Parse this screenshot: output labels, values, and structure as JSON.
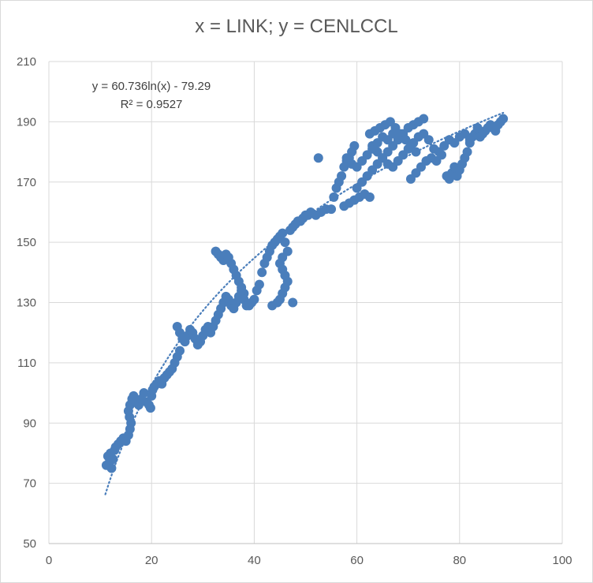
{
  "chart_data": {
    "type": "scatter",
    "title": "x = LINK; y = CENLCCL",
    "xlabel": "",
    "ylabel": "",
    "xlim": [
      0,
      100
    ],
    "ylim": [
      50,
      210
    ],
    "x_ticks": [
      "0",
      "20",
      "40",
      "60",
      "80",
      "100"
    ],
    "y_ticks": [
      "50",
      "70",
      "90",
      "110",
      "130",
      "150",
      "170",
      "190",
      "210"
    ],
    "grid": "on",
    "legend": "none",
    "marker_color": "#4a7ebb",
    "trendline": {
      "type": "log",
      "a": 60.736,
      "b": -79.29,
      "color": "#4a7ebb",
      "style": "dotted",
      "equation": "y = 60.736ln(x) - 79.29",
      "r2": "R² = 0.9527"
    },
    "points": [
      [
        11.2,
        76
      ],
      [
        11.5,
        79
      ],
      [
        11.8,
        77
      ],
      [
        12.0,
        80
      ],
      [
        12.2,
        75
      ],
      [
        12.5,
        78
      ],
      [
        12.8,
        81
      ],
      [
        13.0,
        82
      ],
      [
        13.5,
        83
      ],
      [
        14.0,
        84
      ],
      [
        14.5,
        85
      ],
      [
        15.0,
        84
      ],
      [
        15.5,
        86
      ],
      [
        15.8,
        88
      ],
      [
        16.0,
        90
      ],
      [
        15.7,
        92
      ],
      [
        15.5,
        94
      ],
      [
        15.8,
        96
      ],
      [
        16.2,
        98
      ],
      [
        16.5,
        99
      ],
      [
        17.0,
        97
      ],
      [
        17.5,
        96
      ],
      [
        18.0,
        98
      ],
      [
        18.5,
        100
      ],
      [
        19.0,
        97
      ],
      [
        19.5,
        96
      ],
      [
        19.8,
        95
      ],
      [
        20.0,
        99
      ],
      [
        20.2,
        101
      ],
      [
        20.5,
        102
      ],
      [
        21.0,
        103
      ],
      [
        21.5,
        104
      ],
      [
        22.0,
        103
      ],
      [
        22.5,
        105
      ],
      [
        23.0,
        106
      ],
      [
        23.5,
        107
      ],
      [
        24.0,
        108
      ],
      [
        24.5,
        110
      ],
      [
        25.0,
        112
      ],
      [
        25.5,
        114
      ],
      [
        25.0,
        122
      ],
      [
        25.5,
        120
      ],
      [
        26.0,
        118
      ],
      [
        26.5,
        117
      ],
      [
        27.0,
        119
      ],
      [
        27.5,
        121
      ],
      [
        28.0,
        120
      ],
      [
        28.5,
        118
      ],
      [
        29.0,
        116
      ],
      [
        29.5,
        117
      ],
      [
        30.0,
        119
      ],
      [
        30.5,
        121
      ],
      [
        31.0,
        122
      ],
      [
        31.5,
        120
      ],
      [
        32.0,
        122
      ],
      [
        32.5,
        124
      ],
      [
        33.0,
        126
      ],
      [
        33.5,
        128
      ],
      [
        34.0,
        130
      ],
      [
        34.5,
        132
      ],
      [
        32.5,
        147
      ],
      [
        33.0,
        146
      ],
      [
        33.5,
        145
      ],
      [
        34.0,
        144
      ],
      [
        34.5,
        146
      ],
      [
        35.0,
        145
      ],
      [
        35.5,
        143
      ],
      [
        36.0,
        141
      ],
      [
        36.5,
        139
      ],
      [
        37.0,
        137
      ],
      [
        37.5,
        135
      ],
      [
        38.0,
        133
      ],
      [
        35.0,
        131
      ],
      [
        35.5,
        129
      ],
      [
        36.0,
        128
      ],
      [
        36.5,
        130
      ],
      [
        37.0,
        132
      ],
      [
        37.5,
        134
      ],
      [
        38.0,
        131
      ],
      [
        38.5,
        129
      ],
      [
        39.0,
        129
      ],
      [
        39.5,
        130
      ],
      [
        40.0,
        131
      ],
      [
        40.5,
        134
      ],
      [
        41.0,
        136
      ],
      [
        41.5,
        140
      ],
      [
        42.0,
        143
      ],
      [
        42.5,
        145
      ],
      [
        43.0,
        147
      ],
      [
        43.5,
        149
      ],
      [
        44.0,
        150
      ],
      [
        44.5,
        151
      ],
      [
        45.0,
        152
      ],
      [
        45.5,
        153
      ],
      [
        46.0,
        150
      ],
      [
        46.5,
        147
      ],
      [
        45.5,
        145
      ],
      [
        45.0,
        143
      ],
      [
        45.5,
        141
      ],
      [
        46.0,
        139
      ],
      [
        46.5,
        137
      ],
      [
        46.0,
        135
      ],
      [
        45.5,
        133
      ],
      [
        45.0,
        131
      ],
      [
        44.5,
        130
      ],
      [
        43.5,
        129
      ],
      [
        47.5,
        130
      ],
      [
        47.0,
        154
      ],
      [
        47.5,
        155
      ],
      [
        48.0,
        156
      ],
      [
        48.5,
        157
      ],
      [
        49.0,
        157
      ],
      [
        49.5,
        158
      ],
      [
        50.0,
        159
      ],
      [
        50.5,
        159
      ],
      [
        51.0,
        160
      ],
      [
        52.0,
        159
      ],
      [
        53.0,
        160
      ],
      [
        54.0,
        161
      ],
      [
        55.0,
        161
      ],
      [
        52.5,
        178
      ],
      [
        55.5,
        165
      ],
      [
        56.0,
        168
      ],
      [
        56.5,
        170
      ],
      [
        57.0,
        172
      ],
      [
        57.5,
        175
      ],
      [
        58.0,
        177
      ],
      [
        58.5,
        178
      ],
      [
        59.0,
        180
      ],
      [
        59.5,
        182
      ],
      [
        57.5,
        162
      ],
      [
        58.5,
        163
      ],
      [
        59.5,
        164
      ],
      [
        60.5,
        165
      ],
      [
        61.5,
        166
      ],
      [
        62.5,
        165
      ],
      [
        60.0,
        168
      ],
      [
        61.0,
        170
      ],
      [
        62.0,
        172
      ],
      [
        63.0,
        174
      ],
      [
        64.0,
        176
      ],
      [
        65.0,
        178
      ],
      [
        66.0,
        180
      ],
      [
        67.0,
        182
      ],
      [
        68.0,
        184
      ],
      [
        69.0,
        186
      ],
      [
        70.0,
        188
      ],
      [
        71.0,
        189
      ],
      [
        72.0,
        190
      ],
      [
        73.0,
        191
      ],
      [
        62.5,
        186
      ],
      [
        63.5,
        187
      ],
      [
        64.5,
        188
      ],
      [
        65.5,
        189
      ],
      [
        66.5,
        190
      ],
      [
        67.5,
        188
      ],
      [
        68.5,
        186
      ],
      [
        69.5,
        184
      ],
      [
        70.5,
        182
      ],
      [
        71.5,
        180
      ],
      [
        63.0,
        182
      ],
      [
        64.0,
        180
      ],
      [
        65.0,
        178
      ],
      [
        66.0,
        176
      ],
      [
        67.0,
        175
      ],
      [
        68.0,
        177
      ],
      [
        69.0,
        179
      ],
      [
        70.0,
        181
      ],
      [
        71.0,
        183
      ],
      [
        72.0,
        185
      ],
      [
        58.0,
        178
      ],
      [
        59.0,
        176
      ],
      [
        60.0,
        175
      ],
      [
        61.0,
        177
      ],
      [
        62.0,
        179
      ],
      [
        63.0,
        181
      ],
      [
        64.0,
        183
      ],
      [
        65.0,
        185
      ],
      [
        66.0,
        184
      ],
      [
        67.0,
        186
      ],
      [
        70.5,
        171
      ],
      [
        71.5,
        173
      ],
      [
        72.5,
        175
      ],
      [
        73.5,
        177
      ],
      [
        74.5,
        178
      ],
      [
        75.5,
        177
      ],
      [
        76.5,
        179
      ],
      [
        77.5,
        172
      ],
      [
        78.0,
        171
      ],
      [
        78.5,
        173
      ],
      [
        79.0,
        175
      ],
      [
        79.5,
        172
      ],
      [
        80.0,
        174
      ],
      [
        80.5,
        176
      ],
      [
        81.0,
        178
      ],
      [
        81.5,
        180
      ],
      [
        82.0,
        183
      ],
      [
        82.5,
        185
      ],
      [
        83.0,
        186
      ],
      [
        83.5,
        188
      ],
      [
        84.0,
        185
      ],
      [
        84.5,
        186
      ],
      [
        85.0,
        187
      ],
      [
        85.5,
        188
      ],
      [
        86.0,
        189
      ],
      [
        86.5,
        188
      ],
      [
        87.0,
        187
      ],
      [
        87.5,
        189
      ],
      [
        88.0,
        190
      ],
      [
        88.5,
        191
      ],
      [
        75.0,
        181
      ],
      [
        76.0,
        180
      ],
      [
        77.0,
        182
      ],
      [
        78.0,
        184
      ],
      [
        79.0,
        183
      ],
      [
        80.0,
        185
      ],
      [
        81.0,
        186
      ],
      [
        82.0,
        184
      ],
      [
        74.0,
        184
      ],
      [
        73.0,
        186
      ]
    ]
  }
}
